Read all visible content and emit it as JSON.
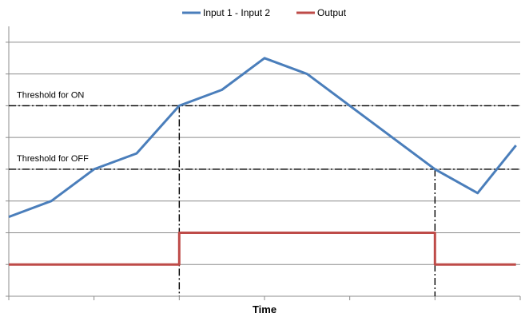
{
  "chart_data": {
    "type": "line",
    "title": "",
    "xlabel": "Time",
    "ylabel": "",
    "xlim": [
      0,
      12
    ],
    "ylim": [
      0,
      8.5
    ],
    "grid": "horizontal",
    "legend": "top-center",
    "colors": {
      "diff": "#4a7ebb",
      "output": "#be4b48",
      "threshold": "#000000"
    },
    "series": [
      {
        "name": "Input 1 - Input 2",
        "color": "#4a7ebb",
        "x": [
          0,
          1,
          2,
          3,
          4,
          5,
          6,
          7,
          8,
          9,
          10,
          11,
          11.9
        ],
        "y": [
          2.5,
          3.0,
          4.0,
          4.5,
          6.0,
          6.5,
          7.5,
          7.0,
          6.0,
          5.0,
          4.0,
          3.25,
          4.75
        ]
      },
      {
        "name": "Output",
        "color": "#be4b48",
        "x": [
          0,
          4,
          4,
          10,
          10,
          11.9
        ],
        "y": [
          1.0,
          1.0,
          2.0,
          2.0,
          1.0,
          1.0
        ]
      }
    ],
    "thresholds": [
      {
        "label": "Threshold for ON",
        "y": 6.0,
        "cross_x": 4
      },
      {
        "label": "Threshold for OFF",
        "y": 4.0,
        "cross_x": 10
      }
    ]
  }
}
